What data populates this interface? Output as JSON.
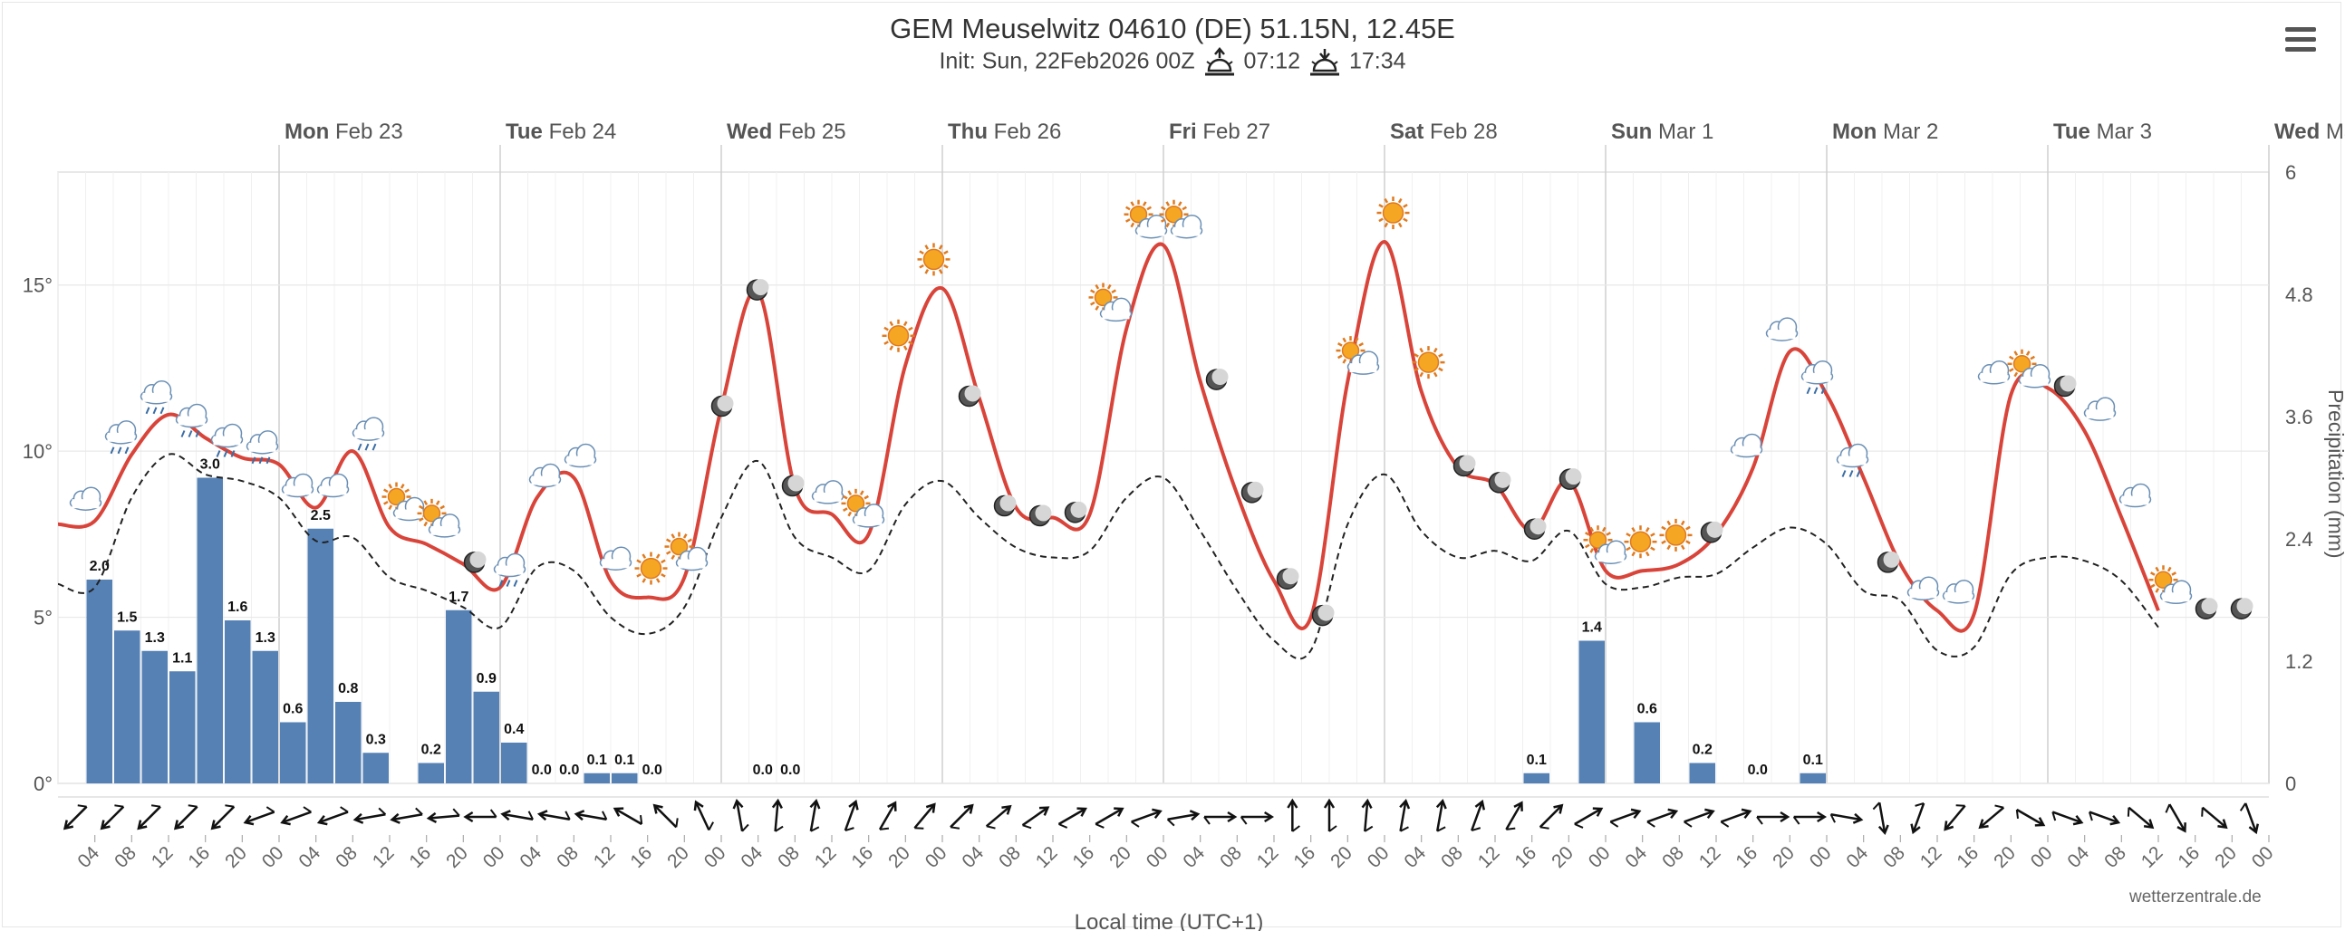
{
  "header": {
    "title": "GEM Meuselwitz 04610 (DE) 51.15N, 12.45E",
    "init_label": "Init: Sun, 22Feb2026 00Z",
    "sunrise": "07:12",
    "sunset": "17:34"
  },
  "footer": {
    "credit": "wetterzentrale.de",
    "xlabel": "Local time (UTC+1)"
  },
  "ylabel_right": "Precipitation (mm)",
  "colors": {
    "temperature": "#d9443a",
    "dewpoint": "#222222",
    "precip_bar": "#5581b5"
  },
  "icons": [
    "menu-icon",
    "sunrise-icon",
    "sunset-icon",
    "weather-icon",
    "moon-icon",
    "wind-barb-icon"
  ],
  "chart_data": {
    "type": "line",
    "x_unit": "hours after 2026-02-22 00Z (3-hourly steps)",
    "day_labels": [
      {
        "dow": "Mon",
        "date": "Feb 23"
      },
      {
        "dow": "Tue",
        "date": "Feb 24"
      },
      {
        "dow": "Wed",
        "date": "Feb 25"
      },
      {
        "dow": "Thu",
        "date": "Feb 26"
      },
      {
        "dow": "Fri",
        "date": "Feb 27"
      },
      {
        "dow": "Sat",
        "date": "Feb 28"
      },
      {
        "dow": "Sun",
        "date": "Mar 1"
      },
      {
        "dow": "Mon",
        "date": "Mar 2"
      },
      {
        "dow": "Tue",
        "date": "Mar 3"
      },
      {
        "dow": "Wed",
        "date": "Mar..."
      }
    ],
    "y_left": {
      "ticks": [
        "0°",
        "5°",
        "10°",
        "15°"
      ],
      "min": 0,
      "max": 18.4
    },
    "y_right": {
      "ticks": [
        "0",
        "1.2",
        "2.4",
        "3.6",
        "4.8",
        "6"
      ],
      "min": 0,
      "max": 6
    },
    "hour_ticks": [
      "04",
      "08",
      "12",
      "16",
      "20",
      "00",
      "04",
      "08",
      "12",
      "16",
      "20",
      "00",
      "04",
      "08",
      "12",
      "16",
      "20",
      "00",
      "04",
      "08",
      "12",
      "16",
      "20",
      "00",
      "04",
      "08",
      "12",
      "16",
      "20",
      "00",
      "04",
      "08",
      "12",
      "16",
      "20",
      "00",
      "04",
      "08",
      "12",
      "16",
      "20",
      "00",
      "04",
      "08",
      "12",
      "16",
      "20",
      "00",
      "04",
      "08",
      "12",
      "16",
      "20",
      "00",
      "04",
      "08",
      "12",
      "16",
      "20",
      "00"
    ],
    "series": [
      {
        "name": "Temperature",
        "values": [
          7.8,
          7.9,
          9.9,
          11.1,
          10.4,
          9.8,
          9.6,
          8.3,
          10.0,
          7.7,
          7.2,
          6.6,
          5.9,
          8.6,
          9.2,
          6.1,
          5.6,
          6.2,
          11.3,
          14.8,
          8.9,
          8.1,
          7.5,
          12.6,
          14.9,
          11.6,
          8.3,
          8.0,
          8.1,
          13.7,
          16.2,
          12.1,
          8.7,
          6.1,
          5.0,
          12.1,
          16.3,
          11.8,
          9.5,
          9.0,
          7.6,
          9.1,
          6.4,
          6.4,
          6.6,
          7.5,
          9.5,
          13.0,
          11.7,
          9.2,
          6.6,
          5.2,
          5.1,
          11.7,
          11.9,
          10.6,
          8.0,
          5.2
        ]
      },
      {
        "name": "Dew point",
        "values": [
          6.0,
          5.9,
          8.6,
          9.9,
          9.3,
          9.1,
          8.6,
          7.3,
          7.4,
          6.2,
          5.8,
          5.3,
          4.7,
          6.5,
          6.4,
          5.0,
          4.5,
          5.3,
          8.0,
          9.7,
          7.4,
          6.8,
          6.4,
          8.4,
          9.1,
          8.0,
          7.1,
          6.8,
          7.0,
          8.6,
          9.2,
          7.6,
          5.8,
          4.3,
          4.0,
          7.8,
          9.3,
          7.6,
          6.8,
          7.0,
          6.7,
          7.6,
          6.0,
          5.9,
          6.2,
          6.3,
          7.1,
          7.7,
          7.2,
          5.8,
          5.5,
          4.0,
          4.1,
          6.3,
          6.8,
          6.7,
          6.1,
          4.7
        ]
      }
    ],
    "precipitation": {
      "hour_offsets": [
        6,
        9,
        12,
        15,
        18,
        21,
        24,
        27,
        30,
        33,
        36,
        42,
        45,
        48,
        51,
        54,
        57,
        60,
        63,
        66,
        78,
        81,
        162,
        168,
        174,
        180,
        186,
        192
      ],
      "values": [
        2.0,
        1.5,
        1.3,
        1.1,
        3.0,
        1.6,
        1.3,
        0.6,
        2.5,
        0.8,
        0.3,
        0.2,
        1.7,
        0.9,
        0.4,
        0.0,
        0.0,
        0.1,
        0.1,
        0.0,
        0.0,
        0.0,
        0.1,
        1.4,
        0.6,
        0.2,
        0.0,
        0.1
      ],
      "labels": [
        "2.0",
        "1.5",
        "1.3",
        "1.1",
        "3.0",
        "1.6",
        "1.3",
        "0.6",
        "2.5",
        "0.8",
        "0.3",
        "0.2",
        "1.7",
        "0.9",
        "0.4",
        "0.0",
        "0.0",
        "0.1",
        "0.1",
        "0.0",
        "0.0",
        "0.0",
        "0.1",
        "1.4",
        "0.6",
        "0.2",
        "0.0",
        "0.1"
      ]
    },
    "weather_icons": [
      "cloud",
      "cloud-rain",
      "cloud-rain",
      "cloud-rain",
      "cloud-rain",
      "cloud-rain",
      "cloud",
      "cloud",
      "cloud-rain",
      "sun-cloud",
      "sun-cloud",
      "moon",
      "cloud-rain",
      "cloud",
      "cloud",
      "cloud",
      "sun",
      "sun-cloud",
      "moon",
      "moon",
      "moon",
      "cloud",
      "sun-cloud",
      "sun",
      "sun",
      "moon",
      "moon",
      "moon",
      "moon",
      "sun-cloud",
      "sun-cloud",
      "sun-cloud",
      "moon",
      "moon",
      "moon",
      "moon",
      "sun-cloud",
      "sun",
      "sun",
      "moon",
      "moon",
      "moon",
      "moon",
      "sun-cloud",
      "sun",
      "sun",
      "moon",
      "cloud",
      "cloud",
      "cloud-rain",
      "cloud-rain",
      "moon",
      "cloud",
      "cloud",
      "cloud",
      "sun-cloud",
      "moon",
      "cloud",
      "cloud",
      "sun-cloud",
      "moon",
      "moon"
    ],
    "wind_directions_deg": [
      225,
      225,
      225,
      225,
      225,
      250,
      250,
      250,
      260,
      260,
      265,
      270,
      280,
      280,
      280,
      300,
      315,
      335,
      350,
      5,
      10,
      20,
      30,
      40,
      45,
      50,
      55,
      60,
      60,
      70,
      80,
      90,
      90,
      0,
      0,
      5,
      10,
      10,
      20,
      30,
      45,
      60,
      70,
      70,
      70,
      70,
      90,
      90,
      100,
      170,
      200,
      220,
      230,
      120,
      110,
      110,
      130,
      150,
      130,
      160
    ],
    "grid": true,
    "legend": "none"
  }
}
